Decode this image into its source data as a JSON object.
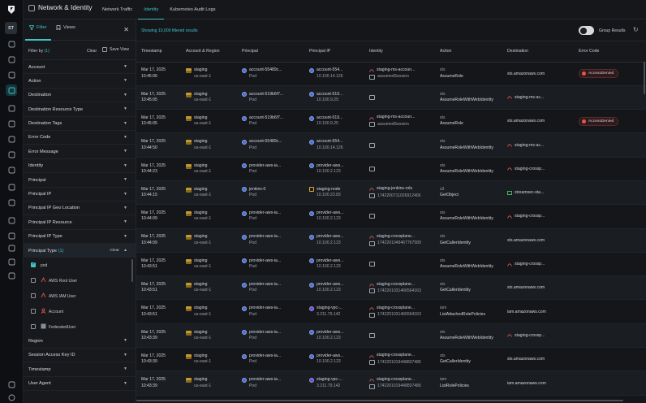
{
  "app": {
    "title": "Network & Identity",
    "avatar": "ST",
    "tabs": [
      {
        "label": "Network Traffic",
        "active": false
      },
      {
        "label": "Identity",
        "active": true
      },
      {
        "label": "Kubernetes Audit Logs",
        "active": false
      }
    ],
    "accent": "#3fc3c9"
  },
  "rail_icons": [
    "dashboard-icon",
    "layers-icon",
    "inventory-icon",
    "network-identity-icon",
    "cross-icon",
    "alert-icon",
    "bug-icon",
    "target-icon",
    "check-icon",
    "gift-icon",
    "shield-icon",
    "sparkle-icon",
    "settings-icon",
    "puzzle-icon",
    "terminal-icon",
    "users-icon",
    "org-icon"
  ],
  "filters": {
    "tab_filter": "Filter",
    "tab_views": "Views",
    "filter_by_label": "Filter by",
    "filter_by_count": "(1)",
    "clear": "Clear",
    "save_view": "Save View",
    "sections_top": [
      "Account",
      "Action",
      "Destination",
      "Destination Resource Type",
      "Destination Tags",
      "Error Code",
      "Error Message",
      "Identity",
      "Principal",
      "Principal IP",
      "Principal IP Geo Location",
      "Principal IP Resource",
      "Principal IP Type"
    ],
    "open_section": {
      "name": "Principal Type",
      "count": "(1)",
      "clear": "Clear"
    },
    "options": [
      {
        "label": "pod",
        "checked": true,
        "icon": ""
      },
      {
        "label": "AWS Root User",
        "checked": false,
        "icon": "aws-root-user-icon"
      },
      {
        "label": "AWS IAM User",
        "checked": false,
        "icon": "aws-iam-user-icon"
      },
      {
        "label": "Account",
        "checked": false,
        "icon": "account-icon"
      },
      {
        "label": "FederatedUser",
        "checked": false,
        "icon": "federated-user-icon"
      }
    ],
    "sections_bottom": [
      "Region",
      "Session Access Key ID",
      "Timestamp",
      "User Agent"
    ]
  },
  "results": {
    "count_text": "Showing 10,000 filtered results",
    "group_results": "Group Results",
    "group_on": false
  },
  "table": {
    "columns": [
      "Timestamp",
      "Account & Region",
      "Principal",
      "Principal IP",
      "Identity",
      "Action",
      "Destination",
      "Error Code"
    ],
    "rows": [
      {
        "date": "Mar 17, 2025",
        "time": "10:45:06",
        "acct": "staging",
        "region": "us-east-1",
        "principal": "account-55489c...",
        "ptype": "Pod",
        "ipname": "account-554...",
        "ip": "10.100.14.126",
        "identity": "staging-ms-accoun...",
        "idsub": "assumedSession",
        "idicon": "role",
        "svc": "sts",
        "op": "AssumeRole",
        "dest": "sts.amazonaws.com",
        "desticon": "",
        "error": "AccessDenied"
      },
      {
        "date": "Mar 17, 2025",
        "time": "10:45:05",
        "acct": "staging",
        "region": "us-east-1",
        "principal": "account-519b6f7...",
        "ptype": "Pod",
        "ipname": "account-519...",
        "ip": "10.100.9.25",
        "identity": "",
        "idsub": "",
        "idicon": "box",
        "svc": "sts",
        "op": "AssumeRoleWithWebIdentity",
        "dest": "staging-ms-ac...",
        "desticon": "role",
        "error": ""
      },
      {
        "date": "Mar 17, 2025",
        "time": "10:45:05",
        "acct": "staging",
        "region": "us-east-1",
        "principal": "account-519b6f7...",
        "ptype": "Pod",
        "ipname": "account-519...",
        "ip": "10.100.9.25",
        "identity": "staging-ms-accoun...",
        "idsub": "assumedSession",
        "idicon": "role",
        "svc": "sts",
        "op": "AssumeRole",
        "dest": "sts.amazonaws.com",
        "desticon": "",
        "error": "AccessDenied"
      },
      {
        "date": "Mar 17, 2025",
        "time": "10:44:50",
        "acct": "staging",
        "region": "us-east-1",
        "principal": "account-55489c...",
        "ptype": "Pod",
        "ipname": "account-554...",
        "ip": "10.100.14.126",
        "identity": "",
        "idsub": "",
        "idicon": "box",
        "svc": "sts",
        "op": "AssumeRoleWithWebIdentity",
        "dest": "staging-ms-ac...",
        "desticon": "role",
        "error": ""
      },
      {
        "date": "Mar 17, 2025",
        "time": "10:44:23",
        "acct": "staging",
        "region": "us-east-1",
        "principal": "provider-aws-ia...",
        "ptype": "Pod",
        "ipname": "provider-aws...",
        "ip": "10.100.2.123",
        "identity": "",
        "idsub": "",
        "idicon": "box",
        "svc": "sts",
        "op": "AssumeRoleWithWebIdentity",
        "dest": "staging-crossp...",
        "desticon": "role",
        "error": ""
      },
      {
        "date": "Mar 17, 2025",
        "time": "10:44:15",
        "acct": "staging",
        "region": "us-east-1",
        "principal": "jenkins-0",
        "ptype": "Pod",
        "ipname": "staging-node",
        "ip": "10.100.23.83",
        "identity": "staging-jenkins-role",
        "idsub": "1742200711026912406",
        "idicon": "role",
        "svc": "s3",
        "op": "GetObject",
        "dest": "streamsec-sta...",
        "desticon": "bucket",
        "error": ""
      },
      {
        "date": "Mar 17, 2025",
        "time": "10:44:09",
        "acct": "staging",
        "region": "us-east-1",
        "principal": "provider-aws-ia...",
        "ptype": "Pod",
        "ipname": "provider-aws...",
        "ip": "10.100.2.123",
        "identity": "",
        "idsub": "",
        "idicon": "box",
        "svc": "sts",
        "op": "AssumeRoleWithWebIdentity",
        "dest": "staging-crossp...",
        "desticon": "role",
        "error": ""
      },
      {
        "date": "Mar 17, 2025",
        "time": "10:44:09",
        "acct": "staging",
        "region": "us-east-1",
        "principal": "provider-aws-ia...",
        "ptype": "Pod",
        "ipname": "provider-aws...",
        "ip": "10.100.2.123",
        "identity": "staging-crossplane...",
        "idsub": "1742201049467767589",
        "idicon": "role",
        "svc": "sts",
        "op": "GetCallerIdentity",
        "dest": "sts.amazonaws.com",
        "desticon": "",
        "error": ""
      },
      {
        "date": "Mar 17, 2025",
        "time": "10:43:51",
        "acct": "staging",
        "region": "us-east-1",
        "principal": "provider-aws-ia...",
        "ptype": "Pod",
        "ipname": "provider-aws...",
        "ip": "10.100.2.123",
        "identity": "",
        "idsub": "",
        "idicon": "box",
        "svc": "sts",
        "op": "AssumeRoleWithWebIdentity",
        "dest": "staging-crossp...",
        "desticon": "role",
        "error": ""
      },
      {
        "date": "Mar 17, 2025",
        "time": "10:43:51",
        "acct": "staging",
        "region": "us-east-1",
        "principal": "provider-aws-ia...",
        "ptype": "Pod",
        "ipname": "provider-aws...",
        "ip": "10.100.2.123",
        "identity": "staging-crossplane...",
        "idsub": "1742201031466564163",
        "idicon": "role",
        "svc": "sts",
        "op": "GetCallerIdentity",
        "dest": "sts.amazonaws.com",
        "desticon": "",
        "error": ""
      },
      {
        "date": "Mar 17, 2025",
        "time": "10:43:51",
        "acct": "staging",
        "region": "us-east-1",
        "principal": "provider-aws-ia...",
        "ptype": "Pod",
        "ipname": "staging-vpc-...",
        "ip": "3.211.79.142",
        "identity": "staging-crossplane...",
        "idsub": "1742201031466564163",
        "idicon": "role",
        "svc": "iam",
        "op": "ListAttachedRolePolicies",
        "dest": "iam.amazonaws.com",
        "desticon": "",
        "error": ""
      },
      {
        "date": "Mar 17, 2025",
        "time": "10:43:39",
        "acct": "staging",
        "region": "us-east-1",
        "principal": "provider-aws-ia...",
        "ptype": "Pod",
        "ipname": "provider-aws...",
        "ip": "10.100.2.123",
        "identity": "",
        "idsub": "",
        "idicon": "box",
        "svc": "sts",
        "op": "AssumeRoleWithWebIdentity",
        "dest": "staging-crossp...",
        "desticon": "role",
        "error": ""
      },
      {
        "date": "Mar 17, 2025",
        "time": "10:43:39",
        "acct": "staging",
        "region": "us-east-1",
        "principal": "provider-aws-ia...",
        "ptype": "Pod",
        "ipname": "provider-aws...",
        "ip": "10.100.2.123",
        "identity": "staging-crossplane...",
        "idsub": "1742201019448837486",
        "idicon": "role",
        "svc": "sts",
        "op": "GetCallerIdentity",
        "dest": "sts.amazonaws.com",
        "desticon": "",
        "error": ""
      },
      {
        "date": "Mar 17, 2025",
        "time": "10:43:39",
        "acct": "staging",
        "region": "us-east-1",
        "principal": "provider-aws-ia...",
        "ptype": "Pod",
        "ipname": "staging-vpc-...",
        "ip": "3.211.79.142",
        "identity": "staging-crossplane...",
        "idsub": "1742201019448837486",
        "idicon": "role",
        "svc": "iam",
        "op": "ListRolePolicies",
        "dest": "iam.amazonaws.com",
        "desticon": "",
        "error": ""
      }
    ]
  }
}
